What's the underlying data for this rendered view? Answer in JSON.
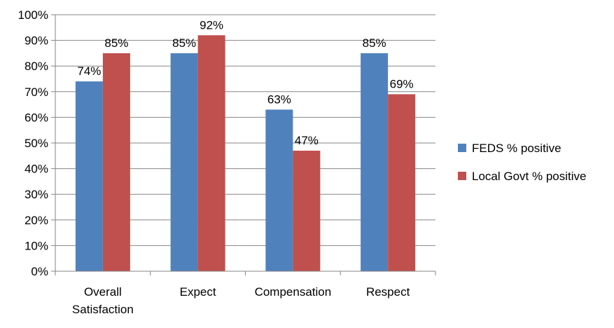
{
  "chart_data": {
    "type": "bar",
    "categories": [
      "Overall Satisfaction",
      "Expect",
      "Compensation",
      "Respect"
    ],
    "category_lines": [
      [
        "Overall",
        "Satisfaction"
      ],
      [
        "Expect"
      ],
      [
        "Compensation"
      ],
      [
        "Respect"
      ]
    ],
    "series": [
      {
        "name": "FEDS % positive",
        "color": "#4f81bd",
        "values": [
          74,
          85,
          63,
          85
        ],
        "labels": [
          "74%",
          "85%",
          "63%",
          "85%"
        ]
      },
      {
        "name": "Local Govt % positive",
        "color": "#c0504d",
        "values": [
          85,
          92,
          47,
          69
        ],
        "labels": [
          "85%",
          "92%",
          "47%",
          "69%"
        ]
      }
    ],
    "ylim": [
      0,
      100
    ],
    "yticks": [
      "0%",
      "10%",
      "20%",
      "30%",
      "40%",
      "50%",
      "60%",
      "70%",
      "80%",
      "90%",
      "100%"
    ],
    "grid": true,
    "legend_position": "right",
    "title": "",
    "xlabel": "",
    "ylabel": ""
  }
}
